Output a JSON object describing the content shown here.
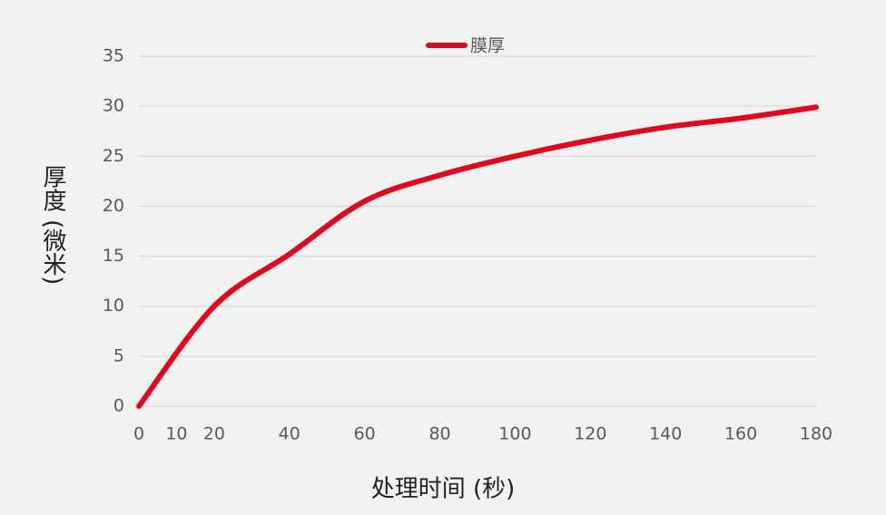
{
  "chart_data": {
    "type": "line",
    "x_label": "处理时间 (秒)",
    "y_label": "厚度 (微米)",
    "x": [
      0,
      20,
      40,
      60,
      80,
      100,
      120,
      140,
      160,
      180
    ],
    "series": [
      {
        "name": "膜厚",
        "color": "#e0081c",
        "values": [
          0,
          10,
          15.2,
          20.5,
          23.1,
          25,
          26.6,
          27.9,
          28.8,
          29.9
        ]
      }
    ],
    "xlim": [
      0,
      180
    ],
    "xticks": [
      0,
      10,
      20,
      40,
      60,
      80,
      100,
      120,
      140,
      160,
      180
    ],
    "ylim": [
      0,
      35
    ],
    "yticks": [
      0,
      5,
      10,
      15,
      20,
      25,
      30,
      35
    ],
    "grid": true,
    "legend": "top"
  }
}
